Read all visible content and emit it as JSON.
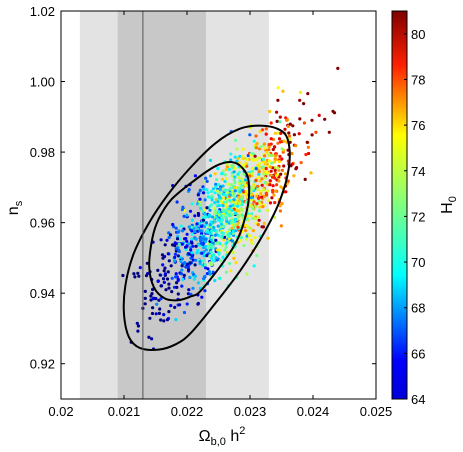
{
  "chart_data": {
    "type": "scatter",
    "title": "",
    "xlabel": {
      "main": "Ω",
      "sub": "b,0",
      "tail": " h",
      "sup": "2"
    },
    "ylabel": {
      "main": "n",
      "sub": "s"
    },
    "colorbar_label": {
      "main": "H",
      "sub": "0"
    },
    "xlim": [
      0.02,
      0.025
    ],
    "ylim": [
      0.91,
      1.02
    ],
    "xticks": [
      "0.02",
      "0.021",
      "0.022",
      "0.023",
      "0.024",
      "0.025"
    ],
    "yticks": [
      "0.92",
      "0.94",
      "0.96",
      "0.98",
      "1.00",
      "1.02"
    ],
    "colorbar": {
      "range": [
        64,
        81
      ],
      "ticks": [
        "64",
        "66",
        "68",
        "70",
        "72",
        "74",
        "76",
        "78",
        "80"
      ],
      "colormap": "jet"
    },
    "grid": false,
    "prior_bands": [
      {
        "x0": 0.0203,
        "x1": 0.0233,
        "color": "#e3e3e3"
      },
      {
        "x0": 0.0209,
        "x1": 0.0223,
        "color": "#c8c8c8"
      }
    ],
    "reference_line_x": 0.0213,
    "contours": [
      {
        "level": "inner",
        "points": [
          [
            0.02225,
            0.9413
          ],
          [
            0.02275,
            0.9535
          ],
          [
            0.02295,
            0.9635
          ],
          [
            0.02298,
            0.9715
          ],
          [
            0.02288,
            0.9755
          ],
          [
            0.0227,
            0.9772
          ],
          [
            0.02245,
            0.976
          ],
          [
            0.02212,
            0.972
          ],
          [
            0.02175,
            0.9665
          ],
          [
            0.02155,
            0.961
          ],
          [
            0.02145,
            0.9555
          ],
          [
            0.0214,
            0.9475
          ],
          [
            0.02148,
            0.9415
          ],
          [
            0.02165,
            0.9385
          ],
          [
            0.02185,
            0.938
          ],
          [
            0.02205,
            0.939
          ]
        ]
      },
      {
        "level": "outer",
        "points": [
          [
            0.02205,
            0.9285
          ],
          [
            0.0224,
            0.936
          ],
          [
            0.02285,
            0.9465
          ],
          [
            0.02322,
            0.957
          ],
          [
            0.02348,
            0.9665
          ],
          [
            0.02362,
            0.976
          ],
          [
            0.0236,
            0.9835
          ],
          [
            0.02345,
            0.9865
          ],
          [
            0.02315,
            0.9875
          ],
          [
            0.02282,
            0.9865
          ],
          [
            0.02245,
            0.9825
          ],
          [
            0.02205,
            0.9755
          ],
          [
            0.0217,
            0.968
          ],
          [
            0.0214,
            0.96
          ],
          [
            0.02115,
            0.951
          ],
          [
            0.02102,
            0.942
          ],
          [
            0.021,
            0.934
          ],
          [
            0.02108,
            0.9275
          ],
          [
            0.02125,
            0.9245
          ],
          [
            0.02155,
            0.924
          ],
          [
            0.02182,
            0.9255
          ]
        ]
      }
    ],
    "points": {
      "count": 1200,
      "center": [
        0.02265,
        0.963
      ],
      "sd": [
        0.00058,
        0.0127
      ],
      "correlation": 0.8,
      "h0_mean": 71.7,
      "h0_per_x": 6800,
      "h0_sd": 2.2
    },
    "colors": {
      "frame": "#000000",
      "contour": "#000000"
    }
  }
}
